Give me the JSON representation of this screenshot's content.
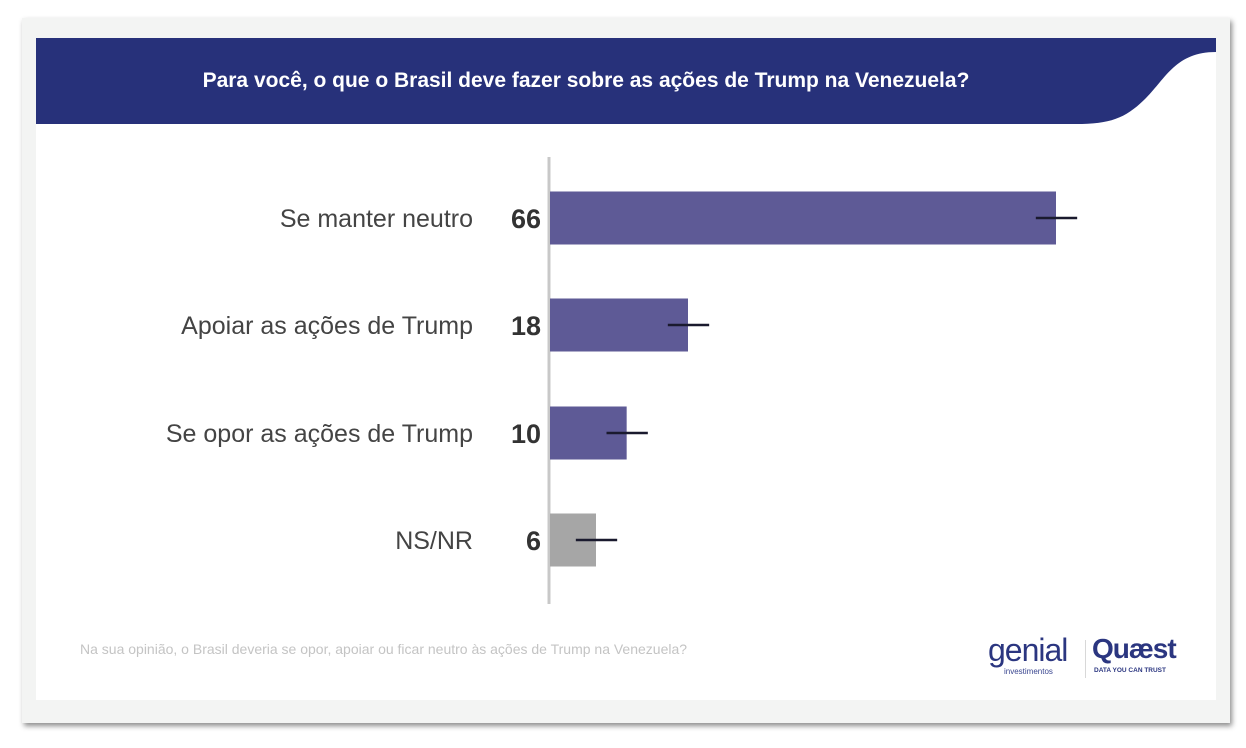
{
  "header": {
    "title": "Para você, o que o Brasil deve fazer sobre as ações de Trump na Venezuela?"
  },
  "footer": {
    "question_note": "Na sua opinião, o Brasil deveria se opor, apoiar ou ficar neutro às ações de Trump na Venezuela?",
    "logos": {
      "genial": {
        "name": "genial",
        "subtitle": "investimentos"
      },
      "quaest": {
        "name": "Quæst",
        "subtitle": "DATA YOU CAN TRUST"
      }
    }
  },
  "colors": {
    "header_bg": "#27317a",
    "bar_primary": "#5e5a96",
    "bar_neutral": "#a6a6a6",
    "error_bar": "#1a1a2e",
    "axis": "#c8c8c8"
  },
  "chart_data": {
    "type": "bar",
    "orientation": "horizontal",
    "title": "Para você, o que o Brasil deve fazer sobre as ações de Trump na Venezuela?",
    "xlabel": "",
    "ylabel": "",
    "categories": [
      "Se manter neutro",
      "Apoiar as ações de Trump",
      "Se opor as ações de Trump",
      "NS/NR"
    ],
    "values": [
      66,
      18,
      10,
      6
    ],
    "value_labels": [
      "66",
      "18",
      "10",
      "6"
    ],
    "bar_colors": [
      "#5e5a96",
      "#5e5a96",
      "#5e5a96",
      "#a6a6a6"
    ],
    "error_margin": 2.5,
    "xlim": [
      0,
      70
    ],
    "grid": false,
    "legend": "none"
  }
}
